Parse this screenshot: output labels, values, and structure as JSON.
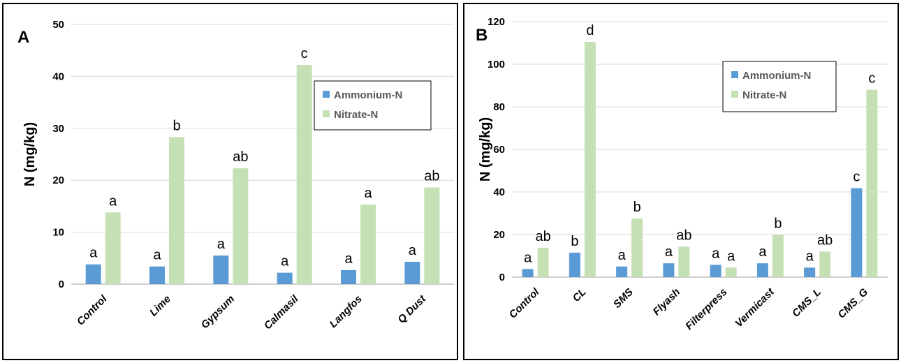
{
  "colors": {
    "ammonium": "#5b9bd5",
    "nitrate": "#c5e0b4",
    "grid": "#d9d9d9",
    "axis": "#bfbfbf"
  },
  "chart_data": [
    {
      "type": "bar",
      "panel_label": "A",
      "categories": [
        "Control",
        "Lime",
        "Gypsum",
        "Calmasil",
        "Langfos",
        "Q Dust"
      ],
      "series": [
        {
          "name": "Ammonium-N",
          "values": [
            3.8,
            3.4,
            5.5,
            2.2,
            2.7,
            4.3
          ],
          "sig": [
            "a",
            "a",
            "a",
            "a",
            "a",
            "a"
          ]
        },
        {
          "name": "Nitrate-N",
          "values": [
            13.8,
            28.3,
            22.3,
            42.2,
            15.3,
            18.6
          ],
          "sig": [
            "a",
            "b",
            "ab",
            "c",
            "a",
            "ab"
          ]
        }
      ],
      "ylabel": "N (mg/kg)",
      "ylim": [
        0,
        50
      ],
      "yticks": [
        "0",
        "10",
        "20",
        "30",
        "40",
        "50"
      ],
      "grid": true,
      "legend": "top-right"
    },
    {
      "type": "bar",
      "panel_label": "B",
      "categories": [
        "Control",
        "CL",
        "SMS",
        "Flyash",
        "Filterpress",
        "Vermicast",
        "CMS_L",
        "CMS_G"
      ],
      "series": [
        {
          "name": "Ammonium-N",
          "values": [
            3.8,
            11.5,
            5.0,
            6.5,
            5.8,
            6.5,
            4.5,
            41.8
          ],
          "sig": [
            "a",
            "b",
            "a",
            "a",
            "a",
            "a",
            "a",
            "c"
          ]
        },
        {
          "name": "Nitrate-N",
          "values": [
            13.8,
            110.5,
            27.5,
            14.3,
            4.5,
            19.8,
            12.0,
            88.0
          ],
          "sig": [
            "ab",
            "d",
            "b",
            "ab",
            "a",
            "b",
            "ab",
            "c"
          ]
        }
      ],
      "ylabel": "N (mg/kg)",
      "ylim": [
        0,
        120
      ],
      "yticks": [
        "0",
        "20",
        "40",
        "60",
        "80",
        "100",
        "120"
      ],
      "grid": true,
      "legend": "top-right"
    }
  ]
}
